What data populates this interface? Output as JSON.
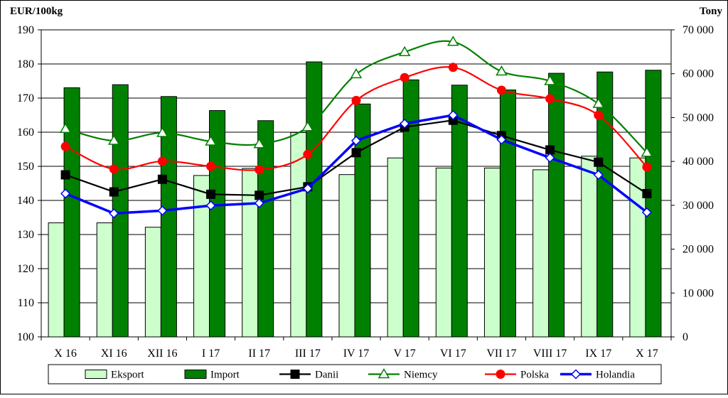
{
  "chart_data": {
    "type": "bar",
    "categories": [
      "X 16",
      "XI 16",
      "XII 16",
      "I 17",
      "II 17",
      "III 17",
      "IV 17",
      "V 17",
      "VI 17",
      "VII 17",
      "VIII 17",
      "IX 17",
      "X 17"
    ],
    "y_left": {
      "label": "EUR/100kg",
      "min": 100,
      "max": 190,
      "step": 10,
      "ticks": [
        "100",
        "110",
        "120",
        "130",
        "140",
        "150",
        "160",
        "170",
        "180",
        "190"
      ]
    },
    "y_right": {
      "label": "Tony",
      "min": 0,
      "max": 70000,
      "step": 10000,
      "ticks": [
        "0",
        "10 000",
        "20 000",
        "30 000",
        "40 000",
        "50 000",
        "60 000",
        "70 000"
      ]
    },
    "grid": "horizontal",
    "legend_position": "bottom",
    "bar_series": [
      {
        "name": "Eksport",
        "axis": "right",
        "color": "#ccffcc",
        "values": [
          26000,
          26000,
          25000,
          36800,
          38400,
          46600,
          37000,
          40800,
          38500,
          38500,
          38100,
          41200,
          40800
        ]
      },
      {
        "name": "Import",
        "axis": "right",
        "color": "#008000",
        "values": [
          56800,
          57500,
          54800,
          51600,
          49300,
          62700,
          53100,
          58600,
          57400,
          56300,
          60100,
          60400,
          60800
        ]
      }
    ],
    "line_series": [
      {
        "name": "Danii",
        "axis": "left",
        "color": "#000000",
        "marker": "square",
        "values": [
          147.5,
          142.5,
          146.2,
          141.8,
          141.5,
          144.0,
          154.0,
          161.5,
          163.5,
          159.0,
          154.8,
          151.2,
          142.0
        ]
      },
      {
        "name": "Niemcy",
        "axis": "left",
        "color": "#008000",
        "marker": "triangle",
        "values": [
          161.0,
          157.5,
          159.8,
          157.3,
          156.5,
          161.5,
          177.0,
          183.5,
          186.5,
          177.8,
          175.0,
          168.3,
          154.0
        ]
      },
      {
        "name": "Polska",
        "axis": "left",
        "color": "#ff0000",
        "marker": "circle",
        "values": [
          155.8,
          149.2,
          151.5,
          150.0,
          149.0,
          153.5,
          169.3,
          176.0,
          179.0,
          172.3,
          169.8,
          165.0,
          149.8
        ]
      },
      {
        "name": "Holandia",
        "axis": "left",
        "color": "#0000ff",
        "marker": "diamond",
        "values": [
          142.0,
          136.2,
          137.0,
          138.5,
          139.2,
          143.5,
          157.5,
          162.5,
          165.0,
          157.8,
          152.5,
          147.5,
          136.5
        ]
      }
    ]
  }
}
